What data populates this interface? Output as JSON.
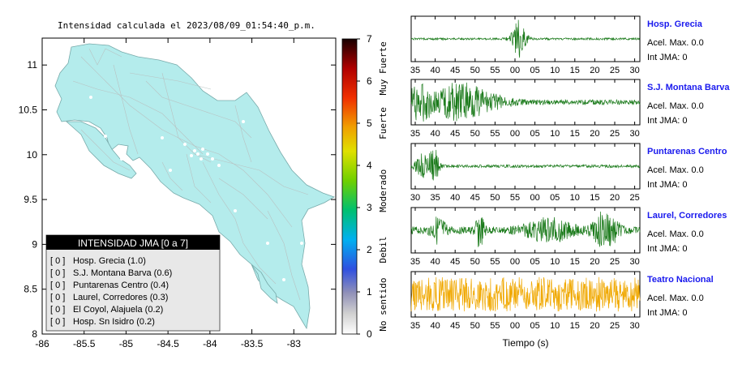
{
  "map": {
    "title": "Intensidad calculada el 2023/08/09_01:54:40_p.m.",
    "x_ticks": [
      "-86",
      "-85.5",
      "-85",
      "-84.5",
      "-84",
      "-83.5",
      "-83"
    ],
    "y_ticks": [
      "11",
      "10.5",
      "10",
      "9.5",
      "9",
      "8.5",
      "8"
    ],
    "xlim": [
      -86,
      -82.5
    ],
    "ylim": [
      8,
      11.3
    ],
    "land_color": "#b4ecec",
    "legend": {
      "title": "INTENSIDAD JMA [0 a 7]",
      "items": [
        {
          "code": "[ 0 ]",
          "label": "Hosp. Grecia (1.0)"
        },
        {
          "code": "[ 0 ]",
          "label": "S.J. Montana Barva (0.6)"
        },
        {
          "code": "[ 0 ]",
          "label": "Puntarenas Centro (0.4)"
        },
        {
          "code": "[ 0 ]",
          "label": "Laurel, Corredores (0.3)"
        },
        {
          "code": "[ 0 ]",
          "label": "El Coyol, Alajuela (0.2)"
        },
        {
          "code": "[ 0 ]",
          "label": "Hosp. Sn Isidro (0.2)"
        }
      ]
    }
  },
  "colorbar": {
    "ticks": [
      "7",
      "6",
      "5",
      "4",
      "3",
      "2",
      "1",
      "0"
    ],
    "labels": [
      "Muy Fuerte",
      "Fuerte",
      "Moderado",
      "Debil",
      "No sentido"
    ],
    "range": [
      0,
      7
    ]
  },
  "chart_data": {
    "type": "line",
    "xlabel": "Tiempo (s)",
    "panels": [
      {
        "station": "Hosp. Grecia",
        "accel_label": "Acel. Max. 0.0",
        "jma_label": "Int JMA: 0",
        "ticks": [
          "35",
          "40",
          "45",
          "50",
          "55",
          "00",
          "05",
          "10",
          "15",
          "20",
          "25",
          "30"
        ],
        "tick_start": 35,
        "color": "#1a7a1a",
        "bursts": [
          {
            "center": 0.47,
            "width": 0.03,
            "amp": 0.95
          }
        ],
        "noise": 0.05
      },
      {
        "station": "S.J. Montana Barva",
        "accel_label": "Acel. Max. 0.0",
        "jma_label": "Int JMA: 0",
        "ticks": [
          "35",
          "40",
          "45",
          "50",
          "55",
          "00",
          "05",
          "10",
          "15",
          "20",
          "25",
          "30"
        ],
        "tick_start": 35,
        "color": "#1a7a1a",
        "bursts": [
          {
            "center": 0.04,
            "width": 0.06,
            "amp": 0.85
          },
          {
            "center": 0.2,
            "width": 0.08,
            "amp": 0.85
          },
          {
            "center": 0.3,
            "width": 0.12,
            "amp": 0.4
          }
        ],
        "noise": 0.12
      },
      {
        "station": "Puntarenas Centro",
        "accel_label": "Acel. Max. 0.0",
        "jma_label": "Int JMA: 0",
        "ticks": [
          "30",
          "35",
          "40",
          "45",
          "50",
          "55",
          "00",
          "05",
          "10",
          "15",
          "20",
          "25"
        ],
        "tick_start": 30,
        "color": "#1a7a1a",
        "bursts": [
          {
            "center": 0.05,
            "width": 0.03,
            "amp": 0.6
          },
          {
            "center": 0.1,
            "width": 0.02,
            "amp": 1.0
          }
        ],
        "noise": 0.07
      },
      {
        "station": "Laurel, Corredores",
        "accel_label": "Acel. Max. 0.0",
        "jma_label": "Int JMA: 0",
        "ticks": [
          "35",
          "40",
          "45",
          "50",
          "55",
          "00",
          "05",
          "10",
          "15",
          "20",
          "25",
          "30"
        ],
        "tick_start": 35,
        "color": "#1a7a1a",
        "bursts": [
          {
            "center": 0.12,
            "width": 0.03,
            "amp": 0.6
          },
          {
            "center": 0.3,
            "width": 0.02,
            "amp": 0.75
          },
          {
            "center": 0.6,
            "width": 0.1,
            "amp": 0.5
          },
          {
            "center": 0.85,
            "width": 0.05,
            "amp": 0.9
          }
        ],
        "noise": 0.18
      },
      {
        "station": "Teatro Nacional",
        "accel_label": "Acel. Max. 0.0",
        "jma_label": "Int JMA: 0",
        "ticks": [
          "35",
          "40",
          "45",
          "50",
          "55",
          "00",
          "05",
          "10",
          "15",
          "20",
          "25",
          "30"
        ],
        "tick_start": 35,
        "color": "#f0a800",
        "bursts": [],
        "noise": 0.85
      }
    ]
  }
}
